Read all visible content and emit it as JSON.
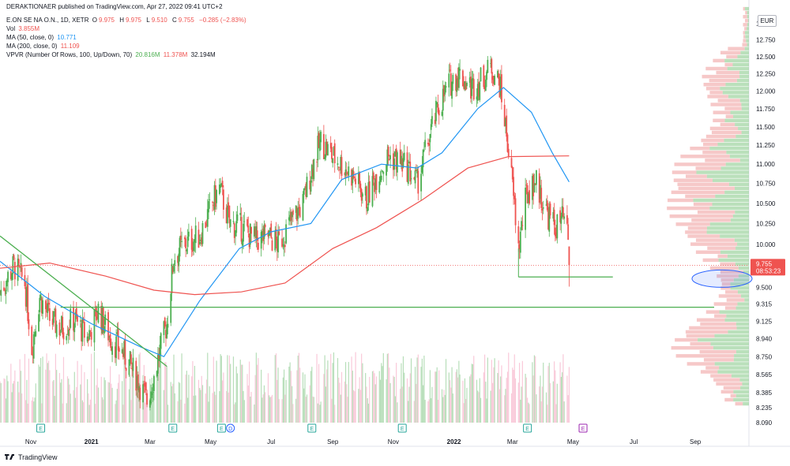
{
  "publisher_line": "DERAKTIONAER published on TradingView.com, Apr 27, 2022 09:41 UTC+2",
  "symbol_header": {
    "name": "E.ON SE NA O.N., 1D, XETR",
    "open_label": "O",
    "open": "9.975",
    "high_label": "H",
    "high": "9.975",
    "low_label": "L",
    "low": "9.510",
    "close_label": "C",
    "close": "9.755",
    "change": "−0.285 (−2.83%)"
  },
  "indicators": [
    {
      "label": "Vol",
      "value": "3.855M",
      "color": "#ef5350"
    },
    {
      "label": "MA (50, close, 0)",
      "value": "10.771",
      "color": "#2196f3"
    },
    {
      "label": "MA (200, close, 0)",
      "value": "11.109",
      "color": "#ef5350"
    }
  ],
  "vpvr": {
    "label": "VPVR (Number Of Rows, 100, Up/Down, 70)",
    "up": "20.816M",
    "down": "11.378M",
    "total": "32.194M"
  },
  "currency": "EUR",
  "price_label": {
    "price": "9.755",
    "countdown": "08:53:23",
    "color": "#ef5350"
  },
  "brand": "TradingView",
  "colors": {
    "up": "#4caf50",
    "down": "#ef5350",
    "ma50": "#2196f3",
    "ma200": "#ef5350",
    "trend": "#4caf50",
    "highlight": "#2962ff"
  },
  "chart_data": {
    "type": "candlestick",
    "y_scale": "log",
    "ylim": [
      8.09,
      13.0
    ],
    "y_ticks": [
      "13.000",
      "12.750",
      "12.500",
      "12.250",
      "12.000",
      "11.750",
      "11.500",
      "11.250",
      "11.000",
      "10.750",
      "10.500",
      "10.250",
      "10.000",
      "9.755",
      "9.500",
      "9.315",
      "9.125",
      "8.940",
      "8.750",
      "8.565",
      "8.385",
      "8.235",
      "8.090"
    ],
    "x_ticks": [
      "Nov",
      "2021",
      "Mar",
      "May",
      "Jul",
      "Sep",
      "Nov",
      "2022",
      "Mar",
      "May",
      "Jul",
      "Sep"
    ],
    "x_range": [
      "2020-10-01",
      "2022-10-25"
    ],
    "events": [
      {
        "date": "2020-11-11",
        "kind": "earnings",
        "label": "E"
      },
      {
        "date": "2021-03-24",
        "kind": "earnings",
        "label": "E"
      },
      {
        "date": "2021-05-12",
        "kind": "earnings",
        "label": "E"
      },
      {
        "date": "2021-05-21",
        "kind": "dividend",
        "label": "D"
      },
      {
        "date": "2021-08-11",
        "kind": "earnings",
        "label": "E"
      },
      {
        "date": "2021-11-10",
        "kind": "earnings",
        "label": "E"
      },
      {
        "date": "2022-03-16",
        "kind": "earnings",
        "label": "E"
      },
      {
        "date": "2022-05-11",
        "kind": "earnings",
        "label": "E"
      }
    ],
    "close_path": [
      [
        "2020-10-01",
        9.45
      ],
      [
        "2020-10-15",
        9.75
      ],
      [
        "2020-10-26",
        9.55
      ],
      [
        "2020-11-02",
        8.85
      ],
      [
        "2020-11-10",
        9.4
      ],
      [
        "2020-11-20",
        9.15
      ],
      [
        "2020-12-01",
        9.05
      ],
      [
        "2020-12-15",
        9.15
      ],
      [
        "2020-12-28",
        8.95
      ],
      [
        "2021-01-08",
        9.25
      ],
      [
        "2021-01-20",
        8.95
      ],
      [
        "2021-02-01",
        8.8
      ],
      [
        "2021-02-15",
        8.55
      ],
      [
        "2021-02-26",
        8.3
      ],
      [
        "2021-03-05",
        8.55
      ],
      [
        "2021-03-12",
        8.85
      ],
      [
        "2021-03-18",
        9.1
      ],
      [
        "2021-03-25",
        9.85
      ],
      [
        "2021-04-05",
        10.0
      ],
      [
        "2021-04-20",
        10.1
      ],
      [
        "2021-05-03",
        10.5
      ],
      [
        "2021-05-10",
        10.7
      ],
      [
        "2021-05-20",
        10.25
      ],
      [
        "2021-06-01",
        10.2
      ],
      [
        "2021-06-15",
        10.05
      ],
      [
        "2021-06-28",
        10.1
      ],
      [
        "2021-07-08",
        10.0
      ],
      [
        "2021-07-20",
        10.25
      ],
      [
        "2021-08-02",
        10.5
      ],
      [
        "2021-08-12",
        11.0
      ],
      [
        "2021-08-20",
        11.3
      ],
      [
        "2021-09-01",
        11.1
      ],
      [
        "2021-09-14",
        10.95
      ],
      [
        "2021-09-24",
        10.8
      ],
      [
        "2021-10-05",
        10.55
      ],
      [
        "2021-10-15",
        10.85
      ],
      [
        "2021-10-27",
        11.1
      ],
      [
        "2021-11-05",
        11.05
      ],
      [
        "2021-11-15",
        10.95
      ],
      [
        "2021-11-25",
        10.75
      ],
      [
        "2021-12-06",
        11.3
      ],
      [
        "2021-12-16",
        11.75
      ],
      [
        "2021-12-27",
        12.1
      ],
      [
        "2022-01-06",
        12.25
      ],
      [
        "2022-01-18",
        12.05
      ],
      [
        "2022-01-28",
        12.15
      ],
      [
        "2022-02-08",
        12.35
      ],
      [
        "2022-02-16",
        12.1
      ],
      [
        "2022-02-24",
        11.3
      ],
      [
        "2022-03-01",
        10.7
      ],
      [
        "2022-03-07",
        9.95
      ],
      [
        "2022-03-15",
        10.6
      ],
      [
        "2022-03-24",
        10.8
      ],
      [
        "2022-04-04",
        10.4
      ],
      [
        "2022-04-13",
        10.2
      ],
      [
        "2022-04-21",
        10.3
      ],
      [
        "2022-04-26",
        10.05
      ],
      [
        "2022-04-27",
        9.755
      ]
    ],
    "series": [
      {
        "name": "MA (50, close, 0)",
        "color": "#2196f3",
        "points": [
          [
            "2020-10-01",
            9.8
          ],
          [
            "2020-11-15",
            9.4
          ],
          [
            "2021-01-01",
            9.1
          ],
          [
            "2021-02-20",
            8.85
          ],
          [
            "2021-03-15",
            8.75
          ],
          [
            "2021-04-20",
            9.35
          ],
          [
            "2021-05-30",
            9.95
          ],
          [
            "2021-07-01",
            10.15
          ],
          [
            "2021-08-10",
            10.25
          ],
          [
            "2021-09-10",
            10.8
          ],
          [
            "2021-10-20",
            11.0
          ],
          [
            "2021-11-25",
            10.95
          ],
          [
            "2021-12-20",
            11.15
          ],
          [
            "2022-01-25",
            11.75
          ],
          [
            "2022-02-20",
            12.05
          ],
          [
            "2022-03-20",
            11.7
          ],
          [
            "2022-04-10",
            11.15
          ],
          [
            "2022-04-27",
            10.771
          ]
        ]
      },
      {
        "name": "MA (200, close, 0)",
        "color": "#ef5350",
        "points": [
          [
            "2020-10-01",
            9.72
          ],
          [
            "2020-11-20",
            9.78
          ],
          [
            "2021-01-15",
            9.63
          ],
          [
            "2021-03-05",
            9.47
          ],
          [
            "2021-04-15",
            9.42
          ],
          [
            "2021-06-01",
            9.45
          ],
          [
            "2021-07-15",
            9.55
          ],
          [
            "2021-09-01",
            9.95
          ],
          [
            "2021-10-15",
            10.2
          ],
          [
            "2021-12-01",
            10.55
          ],
          [
            "2022-01-15",
            10.95
          ],
          [
            "2022-02-25",
            11.1
          ],
          [
            "2022-04-27",
            11.109
          ]
        ]
      }
    ],
    "annotations": [
      {
        "type": "trendline",
        "from": [
          "2020-10-01",
          10.1
        ],
        "to": [
          "2021-03-18",
          8.65
        ]
      },
      {
        "type": "hline",
        "y": 9.28,
        "from": "2020-12-01",
        "to": "2022-09-20"
      },
      {
        "type": "hline",
        "y": 9.62,
        "from": "2022-03-07",
        "to": "2022-06-10"
      },
      {
        "type": "ellipse",
        "center": [
          "2022-09-20",
          9.6
        ]
      }
    ],
    "volume_profile_note": "VPVR rows (green=up, red=down) drawn at right edge"
  }
}
